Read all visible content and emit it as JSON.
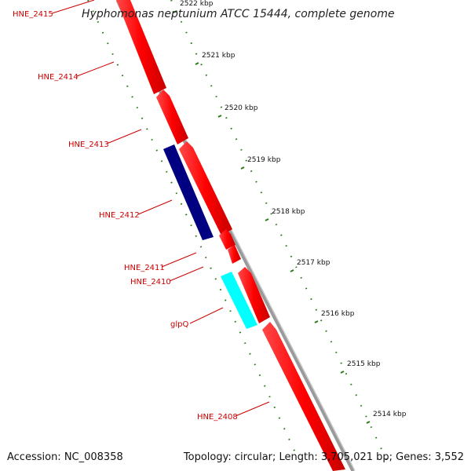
{
  "title": "Hyphomonas neptunium ATCC 15444, complete genome",
  "footer": {
    "accession": "Accession: NC_008358",
    "summary": "Topology: circular; Length: 3,705,021 bp; Genes: 3,552"
  },
  "colors": {
    "forward_gene": "#ff0000",
    "reverse_gene_dark": "#000080",
    "reverse_gene_light": "#00ffff",
    "backbone": "#888888",
    "dots": "#2a7a1a",
    "label": "#cc0000"
  },
  "ticks": [
    {
      "label": "2522 kbp"
    },
    {
      "label": "2521 kbp"
    },
    {
      "label": "2520 kbp"
    },
    {
      "label": "2519 kbp"
    },
    {
      "label": "2518 kbp"
    },
    {
      "label": "2517 kbp"
    },
    {
      "label": "2516 kbp"
    },
    {
      "label": "2515 kbp"
    },
    {
      "label": "2514 kbp"
    }
  ],
  "genes": [
    {
      "name": "HNE_2415"
    },
    {
      "name": "HNE_2414"
    },
    {
      "name": "HNE_2413"
    },
    {
      "name": "HNE_2412"
    },
    {
      "name": "HNE_2411"
    },
    {
      "name": "HNE_2410"
    },
    {
      "name": "glpQ"
    },
    {
      "name": "HNE_2408"
    }
  ]
}
